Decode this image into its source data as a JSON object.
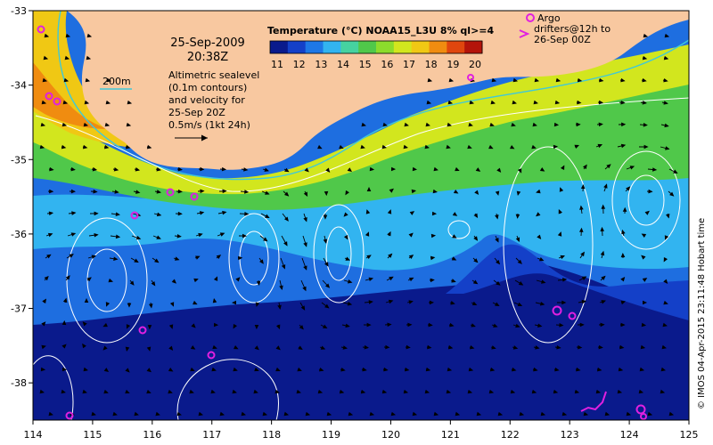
{
  "title_block": {
    "date": "25-Sep-2009",
    "time": "20:38Z"
  },
  "colorbar": {
    "title": "Temperature (°C) NOAA15_L3U 8% ql>=4",
    "ticks": [
      "11",
      "12",
      "13",
      "14",
      "15",
      "16",
      "17",
      "18",
      "19",
      "20"
    ],
    "colors": [
      "#0a1a8c",
      "#1440c8",
      "#1e78e6",
      "#32b4f0",
      "#46d2a0",
      "#50c84a",
      "#8cdc2c",
      "#d2e61e",
      "#f0c814",
      "#f08c10",
      "#e0460e",
      "#b4140a"
    ]
  },
  "legend_200m": "200m",
  "sealevel_note": [
    "Altimetric sealevel",
    "(0.1m contours)",
    "and velocity for",
    "25-Sep 20Z",
    "0.5m/s (1kt 24h)"
  ],
  "argo_note": [
    "Argo",
    "drifters@12h to",
    "26-Sep 00Z"
  ],
  "credit": "© IMOS 04-Apr-2015 23:11:48 Hobart time",
  "axes": {
    "x_ticks": [
      "114",
      "115",
      "116",
      "117",
      "118",
      "119",
      "120",
      "121",
      "122",
      "123",
      "124",
      "125"
    ],
    "y_ticks": [
      "-33",
      "-34",
      "-35",
      "-36",
      "-37",
      "-38"
    ]
  },
  "style": {
    "land": "#f8c8a0",
    "contour": "#ffffff",
    "argo": "#e020e0",
    "shelf": "#40c8d8"
  }
}
